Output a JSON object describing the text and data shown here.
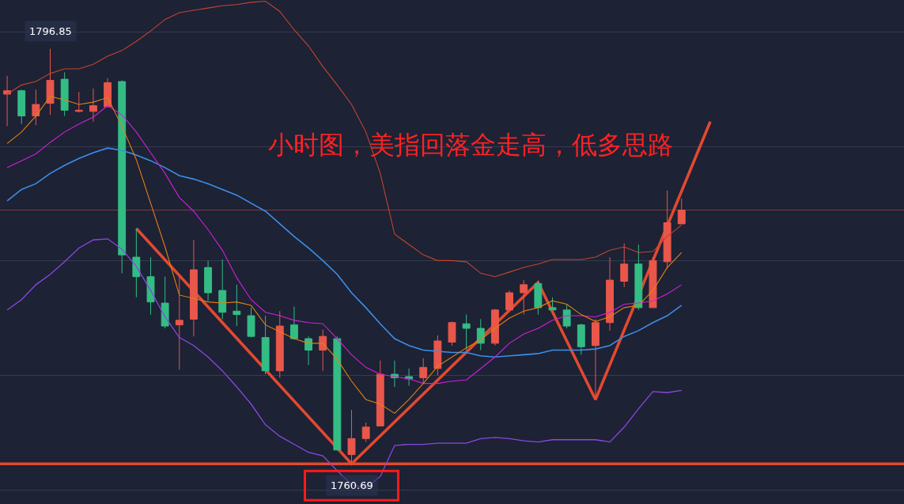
{
  "chart_data": {
    "type": "candlestick",
    "title": "小时图，美指回落金走高，低多思路",
    "categories": [
      null,
      null,
      null,
      null,
      null,
      null,
      null,
      null,
      null,
      null,
      null,
      null,
      null,
      null,
      null,
      null,
      null,
      null,
      null,
      null,
      null,
      null,
      null,
      null,
      null,
      null,
      null,
      null,
      null,
      null,
      null,
      null,
      null,
      null,
      null,
      null,
      null,
      null,
      null,
      null,
      null,
      null,
      null,
      null,
      null,
      null,
      null,
      null,
      null,
      null,
      null,
      null,
      null,
      null,
      null,
      null,
      null,
      null,
      null,
      null,
      null,
      null,
      null
    ],
    "ohlc": [
      [
        1792.9,
        1794.5,
        1790.1,
        1793.2
      ],
      [
        1793.2,
        1793.3,
        1790.3,
        1791.0
      ],
      [
        1791.0,
        1793.3,
        1790.2,
        1792.0
      ],
      [
        1792.1,
        1796.85,
        1791.1,
        1794.1
      ],
      [
        1794.2,
        1794.8,
        1791.0,
        1791.5
      ],
      [
        1791.4,
        1793.1,
        1791.3,
        1791.5
      ],
      [
        1791.4,
        1793.4,
        1790.5,
        1791.9
      ],
      [
        1791.8,
        1794.3,
        1791.8,
        1793.9
      ],
      [
        1794.0,
        1794.1,
        1777.3,
        1778.9
      ],
      [
        1778.7,
        1781.2,
        1775.2,
        1777.0
      ],
      [
        1777.0,
        1778.7,
        1773.7,
        1774.8
      ],
      [
        1774.7,
        1777.0,
        1772.5,
        1772.7
      ],
      [
        1772.8,
        1777.0,
        1768.9,
        1773.2
      ],
      [
        1773.3,
        1780.2,
        1771.8,
        1777.6
      ],
      [
        1777.8,
        1778.4,
        1774.9,
        1775.6
      ],
      [
        1775.8,
        1778.5,
        1773.3,
        1773.9
      ],
      [
        1774.0,
        1776.3,
        1772.7,
        1773.7
      ],
      [
        1773.6,
        1774.3,
        1771.7,
        1771.8
      ],
      [
        1771.7,
        1773.6,
        1768.5,
        1768.8
      ],
      [
        1768.8,
        1774.0,
        1768.2,
        1772.7
      ],
      [
        1772.8,
        1774.4,
        1771.5,
        1771.6
      ],
      [
        1771.6,
        1771.8,
        1769.3,
        1770.6
      ],
      [
        1770.6,
        1772.4,
        1768.8,
        1771.8
      ],
      [
        1771.6,
        1771.8,
        1761.9,
        1761.9
      ],
      [
        1761.5,
        1765.4,
        1760.69,
        1762.9
      ],
      [
        1762.9,
        1764.3,
        1762.6,
        1763.9
      ],
      [
        1764.0,
        1769.7,
        1764.0,
        1768.5
      ],
      [
        1768.5,
        1769.7,
        1767.4,
        1768.2
      ],
      [
        1768.3,
        1769.0,
        1767.5,
        1768.1
      ],
      [
        1768.2,
        1769.9,
        1767.7,
        1769.1
      ],
      [
        1769.0,
        1771.9,
        1768.4,
        1771.4
      ],
      [
        1771.3,
        1773.1,
        1771.0,
        1773.0
      ],
      [
        1772.9,
        1773.7,
        1770.6,
        1772.5
      ],
      [
        1772.5,
        1773.3,
        1770.6,
        1771.2
      ],
      [
        1771.2,
        1774.2,
        1771.0,
        1774.1
      ],
      [
        1774.1,
        1775.8,
        1774.1,
        1775.6
      ],
      [
        1775.6,
        1776.7,
        1773.7,
        1776.3
      ],
      [
        1776.4,
        1776.6,
        1773.7,
        1774.3
      ],
      [
        1774.3,
        1775.2,
        1774.1,
        1774.1
      ],
      [
        1774.1,
        1774.6,
        1772.5,
        1772.7
      ],
      [
        1772.8,
        1772.9,
        1770.2,
        1770.9
      ],
      [
        1771.0,
        1773.3,
        1766.3,
        1773.0
      ],
      [
        1773.0,
        1778.7,
        1772.3,
        1776.7
      ],
      [
        1776.6,
        1779.9,
        1776.1,
        1778.1
      ],
      [
        1778.1,
        1779.8,
        1774.1,
        1774.3
      ],
      [
        1774.3,
        1778.7,
        1774.3,
        1778.4
      ],
      [
        1778.3,
        1784.5,
        1777.7,
        1781.7
      ],
      [
        1781.6,
        1783.8,
        1781.6,
        1782.8
      ],
      null,
      null,
      null,
      null,
      null,
      null,
      null,
      null,
      null,
      null,
      null,
      null,
      null,
      null,
      null
    ],
    "colors": [
      "#e9574b",
      "#33bd84",
      "#e9574b",
      "#e9574b",
      "#33bd84",
      "#e9574b",
      "#e9574b",
      "#e9574b",
      "#33bd84",
      "#33bd84",
      "#33bd84",
      "#33bd84",
      "#e9574b",
      "#e9574b",
      "#33bd84",
      "#33bd84",
      "#33bd84",
      "#33bd84",
      "#33bd84",
      "#e9574b",
      "#33bd84",
      "#33bd84",
      "#e9574b",
      "#33bd84",
      "#e9574b",
      "#e9574b",
      "#e9574b",
      "#33bd84",
      "#33bd84",
      "#e9574b",
      "#e9574b",
      "#e9574b",
      "#33bd84",
      "#33bd84",
      "#e9574b",
      "#e9574b",
      "#e9574b",
      "#33bd84",
      "#33bd84",
      "#33bd84",
      "#33bd84",
      "#e9574b",
      "#e9574b",
      "#e9574b",
      "#33bd84",
      "#e9574b",
      "#e9574b",
      "#e9574b",
      null,
      null,
      null,
      null,
      null,
      null,
      null,
      null,
      null,
      null,
      null,
      null,
      null,
      null,
      null
    ],
    "series": [
      {
        "type": "line",
        "color": "#c4452d",
        "values": [
          1792.9,
          1793.7,
          1794.0,
          1794.7,
          1795.1,
          1795.1,
          1795.5,
          1796.2,
          1796.7,
          1797.5,
          1798.4,
          1799.4,
          1800.0,
          1800.2,
          1800.4,
          1800.6,
          1800.7,
          1800.9,
          1801.0,
          1800.1,
          1798.5,
          1797.1,
          1795.3,
          1793.7,
          1792.0,
          1789.6,
          1786.0,
          1780.7,
          1779.8,
          1778.9,
          1778.4,
          1778.4,
          1778.3,
          1777.3,
          1777.0,
          1777.4,
          1777.8,
          1778.1,
          1778.5,
          1778.5,
          1778.5,
          1778.7,
          1779.3,
          1779.6,
          1779.1,
          1779.2,
          1780.5,
          1781.5,
          null,
          null,
          null,
          null,
          null,
          null,
          null,
          null,
          null,
          null,
          null,
          null,
          null,
          null,
          null
        ]
      },
      {
        "type": "line",
        "color": "#3c8ee8",
        "values": [
          1783.6,
          1784.6,
          1785.1,
          1786.0,
          1786.7,
          1787.3,
          1787.8,
          1788.2,
          1788.0,
          1787.6,
          1787.1,
          1786.5,
          1785.8,
          1785.5,
          1785.1,
          1784.6,
          1784.1,
          1783.4,
          1782.7,
          1781.6,
          1780.5,
          1779.5,
          1778.4,
          1777.2,
          1775.6,
          1774.3,
          1772.9,
          1771.6,
          1771.0,
          1770.6,
          1770.5,
          1770.4,
          1770.4,
          1770.1,
          1770.0,
          1770.1,
          1770.2,
          1770.3,
          1770.6,
          1770.6,
          1770.6,
          1770.7,
          1771.0,
          1771.8,
          1772.3,
          1773.0,
          1773.6,
          1774.5,
          null,
          null,
          null,
          null,
          null,
          null,
          null,
          null,
          null,
          null,
          null,
          null,
          null,
          null,
          null
        ]
      },
      {
        "type": "line",
        "color": "#8b47e2",
        "values": [
          1774.1,
          1775.0,
          1776.3,
          1777.2,
          1778.3,
          1779.5,
          1780.2,
          1780.3,
          1779.4,
          1777.9,
          1775.8,
          1773.5,
          1771.7,
          1771.0,
          1770.0,
          1768.8,
          1767.4,
          1765.9,
          1764.1,
          1763.1,
          1762.4,
          1761.7,
          1761.4,
          1760.1,
          1758.9,
          1758.6,
          1759.6,
          1762.3,
          1762.4,
          1762.4,
          1762.5,
          1762.5,
          1762.5,
          1762.9,
          1763.0,
          1762.9,
          1762.7,
          1762.6,
          1762.8,
          1762.8,
          1762.8,
          1762.8,
          1762.6,
          1763.9,
          1765.5,
          1767.0,
          1766.9,
          1767.1,
          null,
          null,
          null,
          null,
          null,
          null,
          null,
          null,
          null,
          null,
          null,
          null,
          null,
          null,
          null
        ]
      },
      {
        "type": "line",
        "color": "#d31fd8",
        "values": [
          1786.5,
          1787.1,
          1787.7,
          1788.7,
          1789.6,
          1790.3,
          1790.9,
          1791.9,
          1791.1,
          1789.6,
          1787.8,
          1786.0,
          1783.9,
          1782.7,
          1781.1,
          1779.3,
          1776.9,
          1775.0,
          1773.9,
          1773.6,
          1773.2,
          1773.0,
          1772.9,
          1771.6,
          1770.2,
          1769.1,
          1768.5,
          1768.3,
          1768.1,
          1767.7,
          1767.7,
          1767.9,
          1768.0,
          1769.0,
          1770.0,
          1771.2,
          1772.0,
          1772.5,
          1773.2,
          1773.6,
          1773.6,
          1773.5,
          1773.9,
          1774.6,
          1774.7,
          1774.9,
          1775.5,
          1776.3,
          null,
          null,
          null,
          null,
          null,
          null,
          null,
          null,
          null,
          null,
          null,
          null,
          null,
          null,
          null
        ]
      },
      {
        "type": "line",
        "color": "#e5800f",
        "values": [
          1788.6,
          1789.6,
          1791.0,
          1792.7,
          1792.4,
          1792.0,
          1792.2,
          1792.6,
          1790.1,
          1787.2,
          1783.4,
          1779.6,
          1775.4,
          1775.1,
          1774.8,
          1774.7,
          1774.8,
          1774.5,
          1772.8,
          1772.2,
          1771.6,
          1771.2,
          1771.2,
          1769.8,
          1767.9,
          1766.3,
          1765.9,
          1765.1,
          1766.3,
          1767.7,
          1769.2,
          1770.0,
          1770.8,
          1771.5,
          1772.5,
          1773.4,
          1774.0,
          1774.3,
          1774.9,
          1774.6,
          1773.7,
          1773.1,
          1773.5,
          1774.3,
          1774.5,
          1775.8,
          1777.8,
          1779.1,
          null,
          null,
          null,
          null,
          null,
          null,
          null,
          null,
          null,
          null,
          null,
          null,
          null,
          null,
          null
        ]
      },
      {
        "type": "line",
        "color": "#e2492f",
        "values": [
          null,
          null,
          null,
          null,
          null,
          null,
          null,
          null,
          null,
          1781.2,
          null,
          null,
          null,
          null,
          null,
          null,
          null,
          null,
          null,
          null,
          null,
          null,
          null,
          null,
          1760.7,
          null,
          null,
          null,
          null,
          null,
          null,
          null,
          null,
          null,
          null,
          null,
          null,
          1776.5,
          null,
          null,
          null,
          1766.3,
          null,
          null,
          null,
          null,
          null,
          null,
          null,
          1790.5,
          null,
          null,
          null,
          null,
          null,
          null,
          null,
          null,
          null,
          null,
          null,
          null,
          null
        ]
      }
    ],
    "ylim": [
      1757.2,
      1801.1
    ],
    "yticks": [
      {
        "value": 1758.4,
        "label": null
      },
      {
        "value": 1768.4,
        "label": null
      },
      {
        "value": 1778.4,
        "label": null
      },
      {
        "value": 1788.3,
        "label": null
      },
      {
        "value": 1798.3,
        "label": null
      }
    ],
    "grid": "y",
    "ref_lines": [
      {
        "axis": "y",
        "value": 1760.69,
        "color": "#e2492f"
      },
      {
        "axis": "y",
        "value": 1782.8,
        "color": "#7d3b40"
      }
    ],
    "annotations": [
      {
        "text": "1796.85",
        "y": 1796.85
      },
      {
        "text": "1760.69",
        "y": 1760.69
      }
    ]
  }
}
